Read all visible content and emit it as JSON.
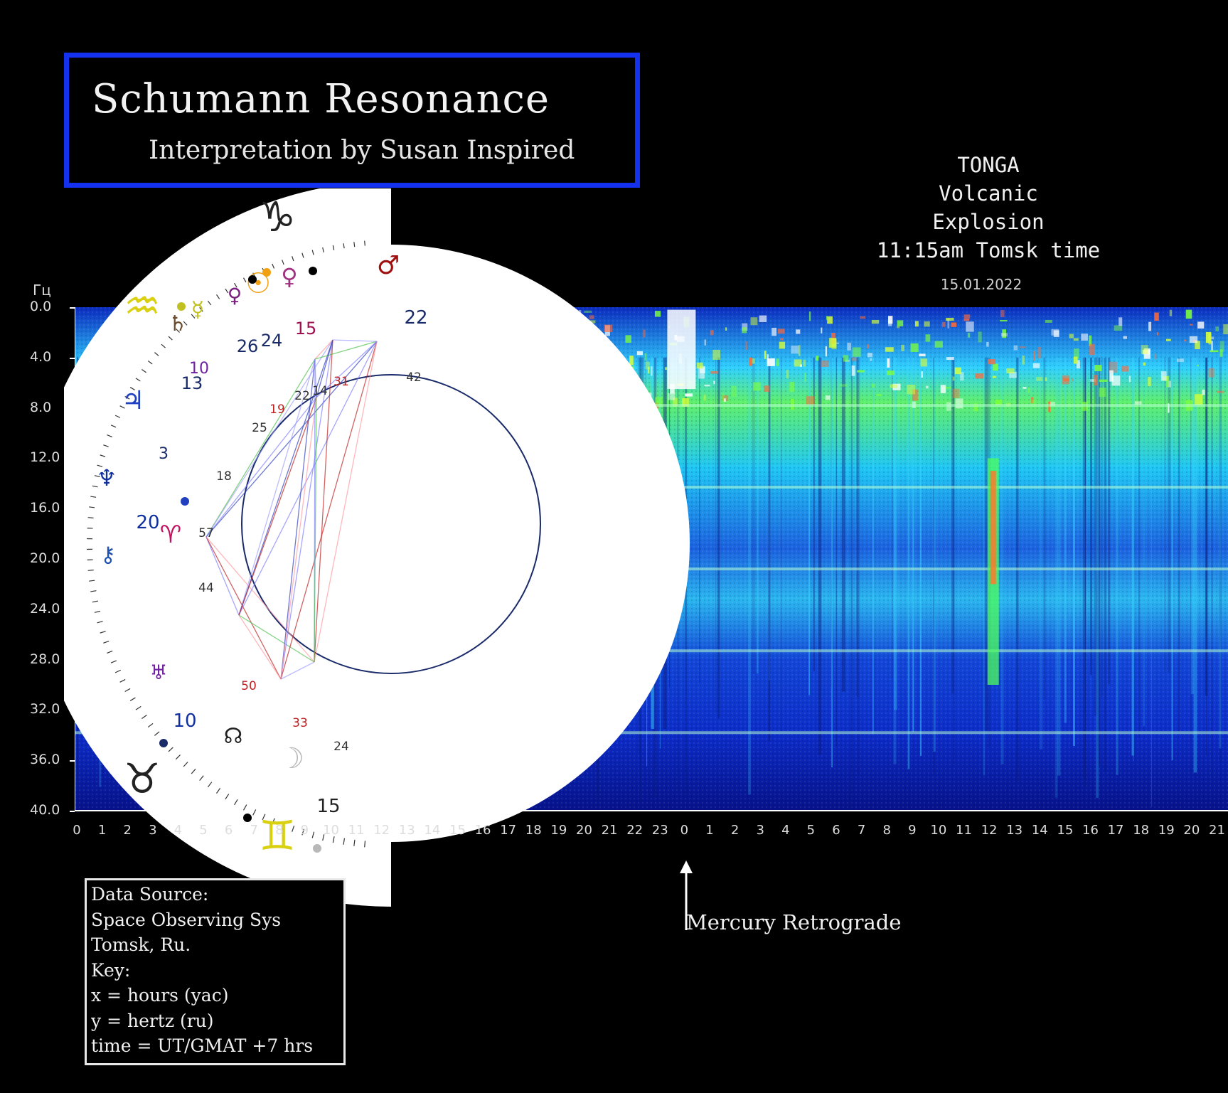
{
  "title": {
    "main": "Schumann Resonance",
    "sub": "Interpretation by Susan Inspired"
  },
  "event_note": {
    "line1": "TONGA",
    "line2": "Volcanic",
    "line3": "Explosion",
    "line4": "11:15am Tomsk time"
  },
  "legend": {
    "lines": [
      "Data Source:",
      "Space Observing Sys",
      "Tomsk, Ru.",
      "Key:",
      "x = hours (yac)",
      "y = hertz (ru)",
      "time = UT/GMAT +7 hrs"
    ]
  },
  "annotation": {
    "retrograde_label": "Mercury Retrograde"
  },
  "colors": {
    "title_border": "#1431f0",
    "spectrogram_low": "#0a1fb4",
    "spectrogram_mid": "#1fd2f0",
    "spectrogram_high": "#7dff3c",
    "spectrogram_peak": "#ffffff"
  },
  "chart_data": {
    "type": "heatmap",
    "title": "15.01.2022",
    "ylabel": "Гц",
    "xlabel": "",
    "ylim": [
      0,
      40
    ],
    "y_ticks": [
      "0.0",
      "4.0",
      "8.0",
      "12.0",
      "16.0",
      "20.0",
      "24.0",
      "28.0",
      "32.0",
      "36.0",
      "40.0"
    ],
    "x_ticks": [
      "0",
      "1",
      "2",
      "3",
      "4",
      "5",
      "6",
      "7",
      "8",
      "9",
      "10",
      "11",
      "12",
      "13",
      "14",
      "15",
      "16",
      "17",
      "18",
      "19",
      "20",
      "21",
      "22",
      "23",
      "0",
      "1",
      "2",
      "3",
      "4",
      "5",
      "6",
      "7",
      "8",
      "9",
      "10",
      "11",
      "12",
      "13",
      "14",
      "15",
      "16",
      "17",
      "18",
      "19",
      "20",
      "21"
    ],
    "resonance_bands_hz": [
      7.8,
      14.3,
      20.8,
      27.3,
      33.8
    ],
    "event_hour": 11.25,
    "retrograde_start_hour": 24
  },
  "astro_wheel": {
    "sign_glyphs": [
      "♑",
      "♒",
      "♈",
      "♉",
      "♊"
    ],
    "planet_glyphs": {
      "saturn": "♄",
      "jupiter": "♃",
      "neptune": "♆",
      "chiron": "⚷",
      "uranus": "♅",
      "node": "☊",
      "moon": "☽",
      "mars": "♂",
      "sun": "☉",
      "venus": "♀",
      "pluto": "♀",
      "mercury": "☿"
    },
    "house_numbers": [
      "3",
      "18",
      "57",
      "44",
      "50",
      "33",
      "24",
      "42",
      "31",
      "14",
      "22",
      "19",
      "25",
      "13",
      "10",
      "26",
      "24",
      "15",
      "22",
      "20",
      "10",
      "15"
    ]
  }
}
